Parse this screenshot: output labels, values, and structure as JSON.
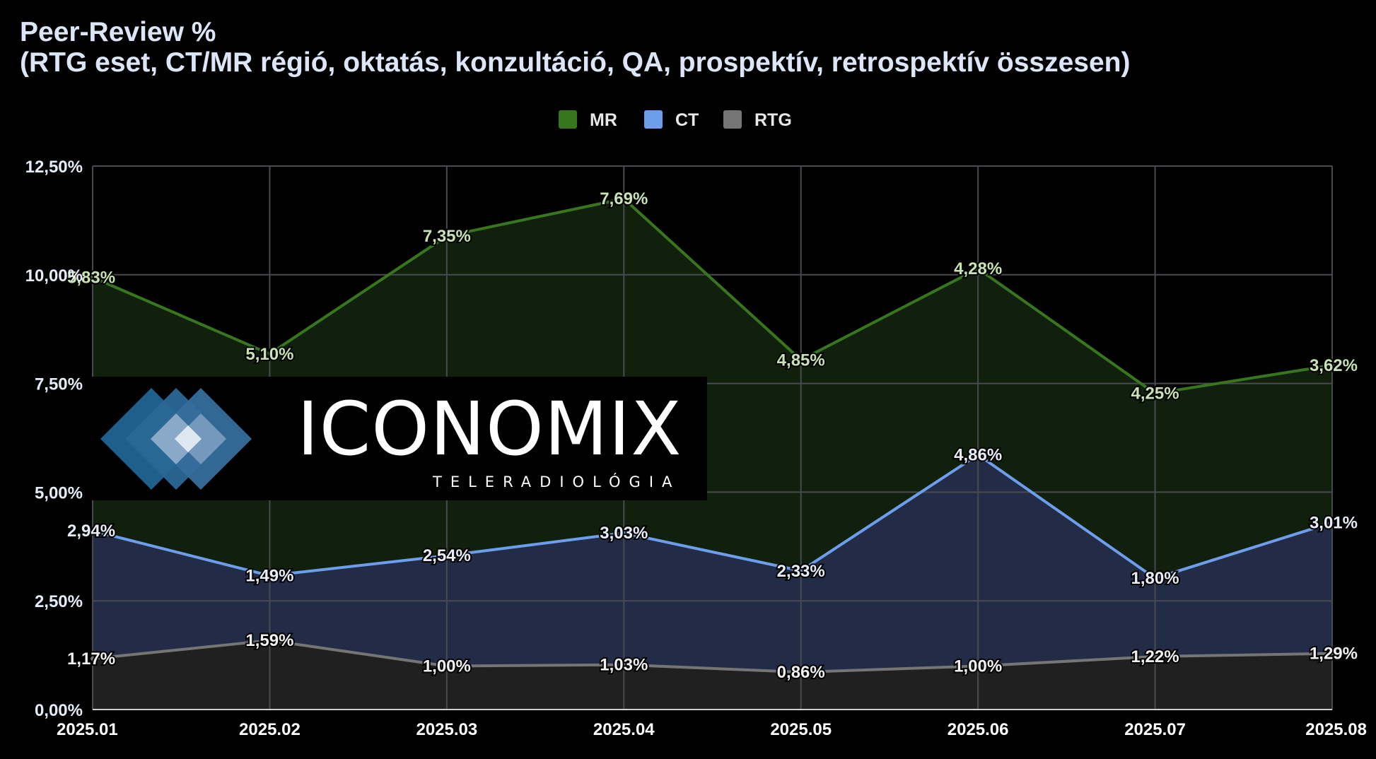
{
  "title_lines": [
    "Peer-Review %",
    "(RTG eset, CT/MR régió, oktatás, konzultáció, QA, prospektív, retrospektív összesen)"
  ],
  "logo": {
    "wordmark": "ICONOMIX",
    "subtitle": "TELERADIOLÓGIA"
  },
  "chart_data": {
    "type": "area",
    "title": "Peer-Review % (RTG eset, CT/MR régió, oktatás, konzultáció, QA, prospektív, retrospektív összesen)",
    "stacked": true,
    "x": [
      "2025.01",
      "2025.02",
      "2025.03",
      "2025.04",
      "2025.05",
      "2025.06",
      "2025.07",
      "2025.08"
    ],
    "y_ticks": [
      "0,00%",
      "2,50%",
      "5,00%",
      "7,50%",
      "10,00%",
      "12,50%"
    ],
    "ylim": [
      0,
      12.5
    ],
    "grid": true,
    "legend_position": "top-center",
    "series": [
      {
        "name": "RTG",
        "color": "#757575",
        "fill": "#202020",
        "values": [
          1.17,
          1.59,
          1.0,
          1.03,
          0.86,
          1.0,
          1.22,
          1.29
        ],
        "labels": [
          "1,17%",
          "1,59%",
          "1,00%",
          "1,03%",
          "0,86%",
          "1,00%",
          "1,22%",
          "1,29%"
        ],
        "label_color": "#f0f0f0"
      },
      {
        "name": "CT",
        "color": "#6d9eeb",
        "fill": "#222c46",
        "values": [
          2.94,
          1.49,
          2.54,
          3.03,
          2.33,
          4.86,
          1.8,
          3.01
        ],
        "labels": [
          "2,94%",
          "1,49%",
          "2,54%",
          "3,03%",
          "2,33%",
          "4,86%",
          "1,80%",
          "3,01%"
        ],
        "label_color": "#e8ecf6"
      },
      {
        "name": "MR",
        "color": "#38761d",
        "fill": "#11200c",
        "values": [
          5.83,
          5.1,
          7.35,
          7.69,
          4.85,
          4.28,
          4.25,
          3.62
        ],
        "labels": [
          "5,83%",
          "5,10%",
          "7,35%",
          "7,69%",
          "4,85%",
          "4,28%",
          "4,25%",
          "3,62%"
        ],
        "label_color": "#c9e2b3"
      }
    ],
    "legend_order": [
      "MR",
      "CT",
      "RTG"
    ]
  }
}
